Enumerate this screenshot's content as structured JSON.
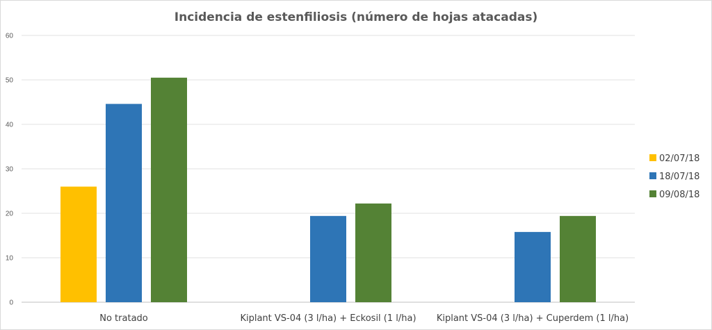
{
  "chart_data": {
    "type": "bar",
    "title": "Incidencia de estenfiliosis (número de hojas atacadas)",
    "xlabel": "",
    "ylabel": "",
    "ylim": [
      0,
      60
    ],
    "yticks": [
      0,
      10,
      20,
      30,
      40,
      50,
      60
    ],
    "grid": true,
    "legend_position": "right",
    "categories": [
      "No tratado",
      "Kiplant VS-04 (3 l/ha) + Eckosil (1 l/ha)",
      "Kiplant VS-04 (3 l/ha) + Cuperdem (1 l/ha)"
    ],
    "series": [
      {
        "name": "02/07/18",
        "color": "#FFC000",
        "values": [
          26,
          null,
          null
        ]
      },
      {
        "name": "18/07/18",
        "color": "#2E75B6",
        "values": [
          44.6,
          19.4,
          15.8
        ]
      },
      {
        "name": "09/08/18",
        "color": "#548235",
        "values": [
          50.5,
          22.2,
          19.4
        ]
      }
    ]
  }
}
